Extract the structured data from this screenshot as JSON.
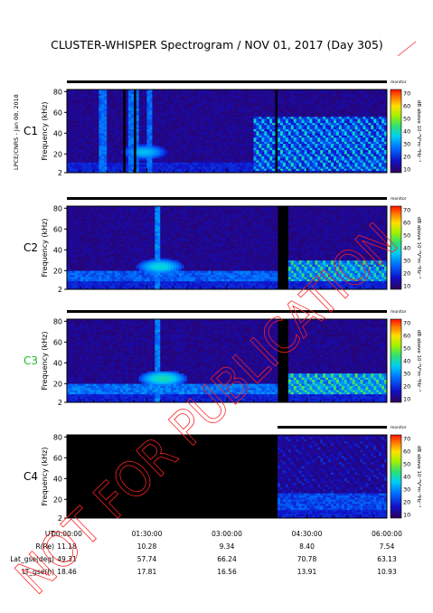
{
  "title": "CLUSTER-WHISPER Spectrogram / NOV 01, 2017 (Day 305)",
  "side_label": "LPCE/CNRS - Jan 08, 2018",
  "watermark": "NOT FOR PUBLICATION",
  "colorbar": {
    "label": "dB above 10⁻⁸V²m⁻²Hz⁻¹",
    "ticks": [
      "70",
      "60",
      "50",
      "40",
      "30",
      "20",
      "10"
    ],
    "badge": "monitor"
  },
  "x_tick_labels": [
    "00:00:00",
    "01:30:00",
    "03:00:00",
    "04:30:00",
    "06:00:00"
  ],
  "rows": [
    {
      "label": "UT",
      "values": [
        "00:00:00",
        "01:30:00",
        "03:00:00",
        "04:30:00",
        "06:00:00"
      ]
    },
    {
      "label": "R(Re)",
      "values": [
        "11.18",
        "10.28",
        "9.34",
        "8.40",
        "7.54"
      ]
    },
    {
      "label": "Lat_gse(deg)",
      "values": [
        "49.31",
        "57.74",
        "66.24",
        "70.78",
        "63.13"
      ]
    },
    {
      "label": "LT_gse(h)",
      "values": [
        "18.46",
        "17.81",
        "16.56",
        "13.91",
        "10.93"
      ]
    }
  ],
  "chart_data": [
    {
      "type": "heatmap",
      "panel": "C1",
      "label_color": "#000000",
      "ylabel": "Frequency (kHz)",
      "yticks": [
        2,
        20,
        40,
        60,
        80
      ],
      "ylim": [
        2,
        82
      ],
      "xlim_hours": [
        0,
        6
      ],
      "data_gaps_hours": [
        [
          1.05,
          1.1
        ],
        [
          1.25,
          1.3
        ],
        [
          3.9,
          3.96
        ]
      ],
      "coverage_hours": [
        [
          0,
          6
        ]
      ],
      "features": [
        {
          "kind": "broadband_burst",
          "t_hours": [
            0.65,
            0.7,
            1.2,
            1.3,
            1.55
          ],
          "intensity_db": 30
        },
        {
          "kind": "emission_blob",
          "t_hours": 1.45,
          "f_khz": 22,
          "intensity_db": 35
        },
        {
          "kind": "harmonic_bands",
          "t_hours": [
            3.5,
            6
          ],
          "f_khz": [
            5,
            55
          ],
          "intensity_db": 40
        }
      ]
    },
    {
      "type": "heatmap",
      "panel": "C2",
      "label_color": "#000000",
      "ylabel": "Frequency (kHz)",
      "yticks": [
        2,
        20,
        40,
        60,
        80
      ],
      "ylim": [
        2,
        82
      ],
      "xlim_hours": [
        0,
        6
      ],
      "data_gaps_hours": [
        [
          3.95,
          4.15
        ]
      ],
      "coverage_hours": [
        [
          0,
          6
        ]
      ],
      "features": [
        {
          "kind": "broadband_burst",
          "t_hours": [
            1.7
          ],
          "intensity_db": 32
        },
        {
          "kind": "emission_blob",
          "t_hours": 1.75,
          "f_khz": 24,
          "intensity_db": 38
        },
        {
          "kind": "continuum_band",
          "t_hours": [
            0,
            6
          ],
          "f_khz": [
            10,
            20
          ],
          "intensity_db": 30
        },
        {
          "kind": "harmonic_bands",
          "t_hours": [
            4.15,
            6
          ],
          "f_khz": [
            10,
            30
          ],
          "intensity_db": 45
        }
      ]
    },
    {
      "type": "heatmap",
      "panel": "C3",
      "label_color": "#22bb22",
      "ylabel": "Frequency (kHz)",
      "yticks": [
        2,
        20,
        40,
        60,
        80
      ],
      "ylim": [
        2,
        82
      ],
      "xlim_hours": [
        0,
        6
      ],
      "data_gaps_hours": [
        [
          3.95,
          4.15
        ]
      ],
      "coverage_hours": [
        [
          0,
          6
        ]
      ],
      "features": [
        {
          "kind": "broadband_burst",
          "t_hours": [
            1.7
          ],
          "intensity_db": 32
        },
        {
          "kind": "emission_blob",
          "t_hours": 1.8,
          "f_khz": 25,
          "intensity_db": 40
        },
        {
          "kind": "continuum_band",
          "t_hours": [
            0,
            6
          ],
          "f_khz": [
            10,
            20
          ],
          "intensity_db": 32
        },
        {
          "kind": "harmonic_bands",
          "t_hours": [
            4.15,
            6
          ],
          "f_khz": [
            10,
            30
          ],
          "intensity_db": 47
        }
      ]
    },
    {
      "type": "heatmap",
      "panel": "C4",
      "label_color": "#000000",
      "ylabel": "Frequency (kHz)",
      "yticks": [
        2,
        20,
        40,
        60,
        80
      ],
      "ylim": [
        2,
        82
      ],
      "xlim_hours": [
        0,
        6
      ],
      "data_gaps_hours": [],
      "coverage_hours": [
        [
          3.95,
          6
        ]
      ],
      "features": [
        {
          "kind": "continuum_band",
          "t_hours": [
            3.95,
            6
          ],
          "f_khz": [
            10,
            25
          ],
          "intensity_db": 28
        },
        {
          "kind": "harmonic_bands",
          "t_hours": [
            3.95,
            6
          ],
          "f_khz": [
            25,
            80
          ],
          "intensity_db": 22
        }
      ]
    }
  ]
}
